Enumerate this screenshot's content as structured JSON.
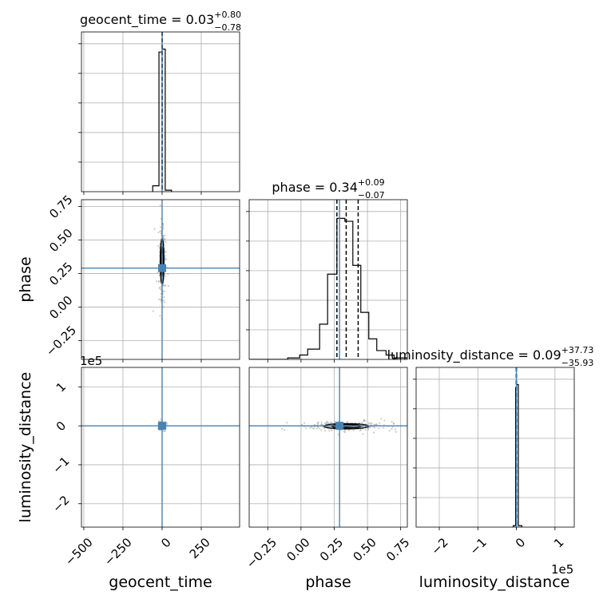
{
  "chart_data": {
    "type": "corner",
    "parameters": [
      {
        "name": "geocent_time",
        "title": {
          "prefix": "geocent_time = 0.03",
          "sup": "+0.80",
          "sub": "−0.78"
        },
        "axis_label": "geocent_time",
        "range": [
          -515,
          495
        ],
        "ticks": [
          -500,
          -250,
          0,
          250
        ],
        "tick_labels": [
          "−500",
          "−250",
          "0",
          "250"
        ],
        "truth": 0,
        "quantiles": [
          -0.75,
          0.03,
          0.83
        ],
        "hist": {
          "bins": [
            [
              -60,
              -20,
              0.04
            ],
            [
              -20,
              0,
              0.95
            ],
            [
              0,
              20,
              0.97
            ],
            [
              20,
              60,
              0.01
            ]
          ]
        }
      },
      {
        "name": "phase",
        "title": {
          "prefix": "phase = 0.34",
          "sup": "+0.09",
          "sub": "−0.07"
        },
        "axis_label": "phase",
        "range": [
          -0.39,
          0.8
        ],
        "ticks": [
          -0.25,
          0.0,
          0.25,
          0.5,
          0.75
        ],
        "tick_labels": [
          "−0.25",
          "0.00",
          "0.25",
          "0.50",
          "0.75"
        ],
        "truth": 0.29,
        "quantiles": [
          0.27,
          0.34,
          0.43
        ],
        "hist": {
          "bins": [
            [
              -0.39,
              -0.24,
              0.0
            ],
            [
              -0.24,
              -0.1,
              0.0
            ],
            [
              -0.1,
              -0.01,
              0.01
            ],
            [
              -0.01,
              0.05,
              0.03
            ],
            [
              0.05,
              0.14,
              0.07
            ],
            [
              0.14,
              0.2,
              0.24
            ],
            [
              0.2,
              0.27,
              0.58
            ],
            [
              0.27,
              0.33,
              0.96
            ],
            [
              0.33,
              0.39,
              0.94
            ],
            [
              0.39,
              0.45,
              0.64
            ],
            [
              0.45,
              0.51,
              0.32
            ],
            [
              0.51,
              0.57,
              0.14
            ],
            [
              0.57,
              0.64,
              0.06
            ],
            [
              0.64,
              0.7,
              0.03
            ],
            [
              0.7,
              0.8,
              0.01
            ]
          ]
        }
      },
      {
        "name": "luminosity_distance",
        "title": {
          "prefix": "luminosity_distance = 0.09",
          "sup": "+37.73",
          "sub": "−35.93"
        },
        "axis_label": "luminosity_distance",
        "range": [
          -2.6,
          1.5
        ],
        "ticks": [
          -2,
          -1,
          0,
          1
        ],
        "tick_labels": [
          "−2",
          "−1",
          "0",
          "1"
        ],
        "offset_label": "1e5",
        "truth": 0,
        "quantiles": [
          -0.0003,
          0.0,
          0.0004
        ],
        "hist": {
          "bins": [
            [
              -0.08,
              -0.02,
              0.01
            ],
            [
              -0.02,
              0.0,
              0.95
            ],
            [
              0.0,
              0.05,
              0.97
            ],
            [
              0.05,
              0.14,
              0.01
            ]
          ]
        }
      }
    ],
    "contours_2d": [
      {
        "x": "geocent_time",
        "y": "phase",
        "center": [
          0,
          0.34
        ],
        "sigma": [
          7,
          0.1
        ],
        "truth": [
          0,
          0.29
        ]
      },
      {
        "x": "geocent_time",
        "y": "luminosity_distance",
        "center": [
          0,
          0
        ],
        "sigma": [
          6,
          0.03
        ],
        "truth": [
          0,
          0
        ]
      },
      {
        "x": "phase",
        "y": "luminosity_distance",
        "center": [
          0.34,
          -0.01
        ],
        "sigma": [
          0.1,
          0.04
        ],
        "truth": [
          0.29,
          0
        ]
      }
    ],
    "grid": true,
    "truth_color": "#4682b4",
    "sample_color": "#aaaaaa"
  }
}
